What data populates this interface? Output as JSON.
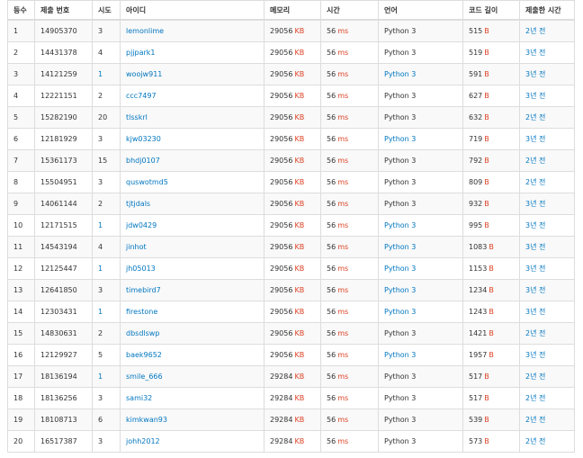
{
  "columns": [
    "등수",
    "제출 번호",
    "시도",
    "아이디",
    "메모리",
    "시간",
    "언어",
    "코드 길이",
    "제출한 시간"
  ],
  "units": {
    "memory": "KB",
    "time": "ms",
    "length": "B"
  },
  "colors": {
    "link": "#0076c0",
    "unit": "#dd4124",
    "border": "#dddddd",
    "stripe": "#f9f9f9"
  },
  "rows": [
    {
      "rank": "1",
      "submission": "14905370",
      "tries": "3",
      "tries_link": false,
      "user": "lemonlime",
      "memory": "29056",
      "time": "56",
      "lang": "Python 3",
      "lang_link": false,
      "length": "515",
      "submitted": "2년 전"
    },
    {
      "rank": "2",
      "submission": "14431378",
      "tries": "4",
      "tries_link": false,
      "user": "pjjpark1",
      "memory": "29056",
      "time": "56",
      "lang": "Python 3",
      "lang_link": false,
      "length": "519",
      "submitted": "3년 전"
    },
    {
      "rank": "3",
      "submission": "14121259",
      "tries": "1",
      "tries_link": true,
      "user": "woojw911",
      "memory": "29056",
      "time": "56",
      "lang": "Python 3",
      "lang_link": true,
      "length": "591",
      "submitted": "3년 전"
    },
    {
      "rank": "4",
      "submission": "12221151",
      "tries": "2",
      "tries_link": false,
      "user": "ccc7497",
      "memory": "29056",
      "time": "56",
      "lang": "Python 3",
      "lang_link": false,
      "length": "627",
      "submitted": "3년 전"
    },
    {
      "rank": "5",
      "submission": "15282190",
      "tries": "20",
      "tries_link": false,
      "user": "tlsskrl",
      "memory": "29056",
      "time": "56",
      "lang": "Python 3",
      "lang_link": false,
      "length": "632",
      "submitted": "2년 전"
    },
    {
      "rank": "6",
      "submission": "12181929",
      "tries": "3",
      "tries_link": false,
      "user": "kjw03230",
      "memory": "29056",
      "time": "56",
      "lang": "Python 3",
      "lang_link": true,
      "length": "719",
      "submitted": "3년 전"
    },
    {
      "rank": "7",
      "submission": "15361173",
      "tries": "15",
      "tries_link": false,
      "user": "bhdj0107",
      "memory": "29056",
      "time": "56",
      "lang": "Python 3",
      "lang_link": false,
      "length": "792",
      "submitted": "2년 전"
    },
    {
      "rank": "8",
      "submission": "15504951",
      "tries": "3",
      "tries_link": false,
      "user": "quswotmd5",
      "memory": "29056",
      "time": "56",
      "lang": "Python 3",
      "lang_link": false,
      "length": "809",
      "submitted": "2년 전"
    },
    {
      "rank": "9",
      "submission": "14061144",
      "tries": "2",
      "tries_link": false,
      "user": "tjtjdals",
      "memory": "29056",
      "time": "56",
      "lang": "Python 3",
      "lang_link": false,
      "length": "932",
      "submitted": "3년 전"
    },
    {
      "rank": "10",
      "submission": "12171515",
      "tries": "1",
      "tries_link": true,
      "user": "jdw0429",
      "memory": "29056",
      "time": "56",
      "lang": "Python 3",
      "lang_link": true,
      "length": "995",
      "submitted": "3년 전"
    },
    {
      "rank": "11",
      "submission": "14543194",
      "tries": "4",
      "tries_link": false,
      "user": "jinhot",
      "memory": "29056",
      "time": "56",
      "lang": "Python 3",
      "lang_link": true,
      "length": "1083",
      "submitted": "3년 전"
    },
    {
      "rank": "12",
      "submission": "12125447",
      "tries": "1",
      "tries_link": true,
      "user": "jh05013",
      "memory": "29056",
      "time": "56",
      "lang": "Python 3",
      "lang_link": true,
      "length": "1153",
      "submitted": "3년 전"
    },
    {
      "rank": "13",
      "submission": "12641850",
      "tries": "3",
      "tries_link": false,
      "user": "timebird7",
      "memory": "29056",
      "time": "56",
      "lang": "Python 3",
      "lang_link": true,
      "length": "1234",
      "submitted": "3년 전"
    },
    {
      "rank": "14",
      "submission": "12303431",
      "tries": "1",
      "tries_link": true,
      "user": "firestone",
      "memory": "29056",
      "time": "56",
      "lang": "Python 3",
      "lang_link": true,
      "length": "1243",
      "submitted": "3년 전"
    },
    {
      "rank": "15",
      "submission": "14830631",
      "tries": "2",
      "tries_link": false,
      "user": "dbsdlswp",
      "memory": "29056",
      "time": "56",
      "lang": "Python 3",
      "lang_link": false,
      "length": "1421",
      "submitted": "2년 전"
    },
    {
      "rank": "16",
      "submission": "12129927",
      "tries": "5",
      "tries_link": false,
      "user": "baek9652",
      "memory": "29056",
      "time": "56",
      "lang": "Python 3",
      "lang_link": true,
      "length": "1957",
      "submitted": "3년 전"
    },
    {
      "rank": "17",
      "submission": "18136194",
      "tries": "1",
      "tries_link": true,
      "user": "smile_666",
      "memory": "29284",
      "time": "56",
      "lang": "Python 3",
      "lang_link": false,
      "length": "517",
      "submitted": "2년 전"
    },
    {
      "rank": "18",
      "submission": "18136256",
      "tries": "3",
      "tries_link": false,
      "user": "sami32",
      "memory": "29284",
      "time": "56",
      "lang": "Python 3",
      "lang_link": false,
      "length": "517",
      "submitted": "2년 전"
    },
    {
      "rank": "19",
      "submission": "18108713",
      "tries": "6",
      "tries_link": false,
      "user": "kimkwan93",
      "memory": "29284",
      "time": "56",
      "lang": "Python 3",
      "lang_link": false,
      "length": "539",
      "submitted": "2년 전"
    },
    {
      "rank": "20",
      "submission": "16517387",
      "tries": "3",
      "tries_link": false,
      "user": "johh2012",
      "memory": "29284",
      "time": "56",
      "lang": "Python 3",
      "lang_link": false,
      "length": "573",
      "submitted": "2년 전"
    }
  ]
}
